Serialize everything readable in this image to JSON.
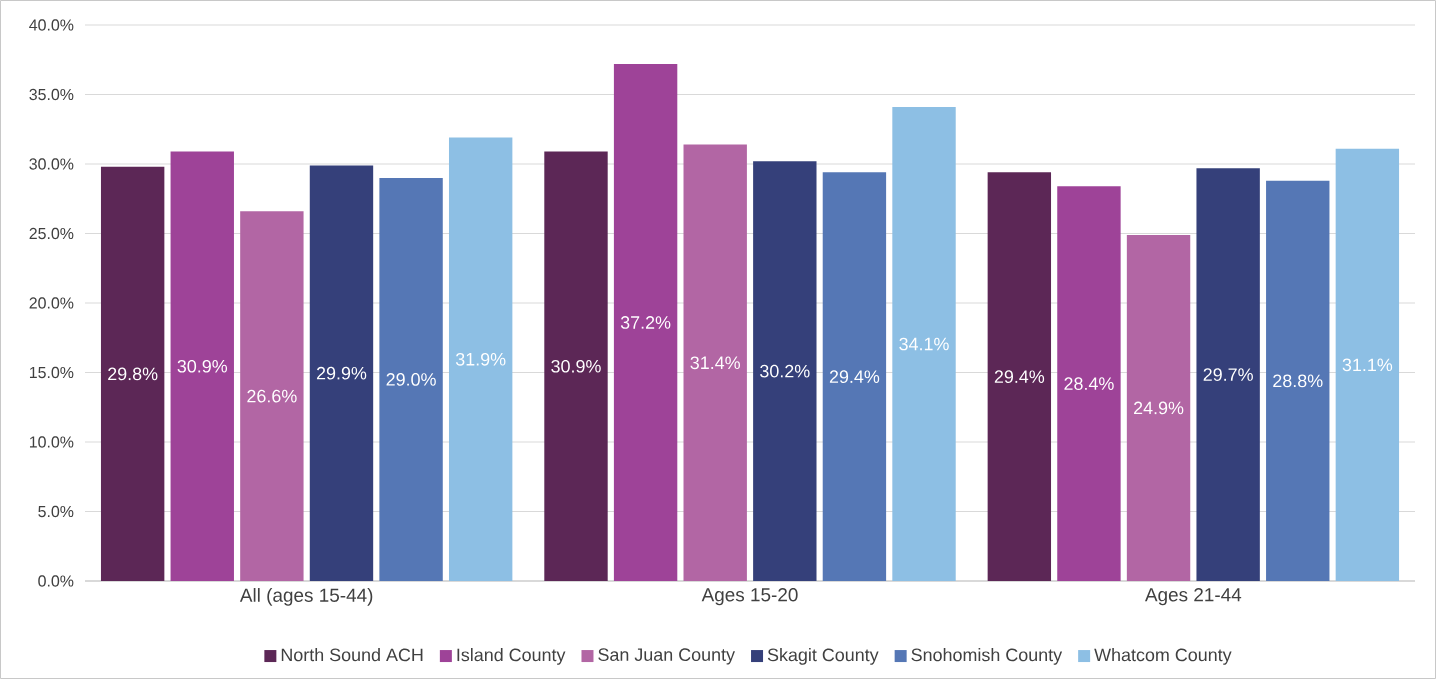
{
  "chart_data": {
    "type": "bar",
    "categories": [
      "All (ages 15-44)",
      "Ages 15-20",
      "Ages 21-44"
    ],
    "series": [
      {
        "name": "North Sound ACH",
        "color": "#5c2756",
        "values": [
          29.8,
          30.9,
          29.4
        ],
        "value_labels": [
          "29.8%",
          "30.9%",
          "29.4%"
        ]
      },
      {
        "name": "Island County",
        "color": "#9e4398",
        "values": [
          30.9,
          37.2,
          28.4
        ],
        "value_labels": [
          "30.9%",
          "37.2%",
          "28.4%"
        ]
      },
      {
        "name": "San Juan County",
        "color": "#b266a4",
        "values": [
          26.6,
          31.4,
          24.9
        ],
        "value_labels": [
          "26.6%",
          "31.4%",
          "24.9%"
        ]
      },
      {
        "name": "Skagit County",
        "color": "#35407a",
        "values": [
          29.9,
          30.2,
          29.7
        ],
        "value_labels": [
          "29.9%",
          "30.2%",
          "29.7%"
        ]
      },
      {
        "name": "Snohomish County",
        "color": "#5577b5",
        "values": [
          29.0,
          29.4,
          28.8
        ],
        "value_labels": [
          "29.0%",
          "29.4%",
          "28.8%"
        ]
      },
      {
        "name": "Whatcom County",
        "color": "#8dbfe4",
        "values": [
          31.9,
          34.1,
          31.1
        ],
        "value_labels": [
          "31.9%",
          "34.1%",
          "31.1%"
        ]
      }
    ],
    "ylim": [
      0,
      40
    ],
    "yticks": [
      {
        "value": 0,
        "label": "0.0%"
      },
      {
        "value": 5,
        "label": "5.0%"
      },
      {
        "value": 10,
        "label": "10.0%"
      },
      {
        "value": 15,
        "label": "15.0%"
      },
      {
        "value": 20,
        "label": "20.0%"
      },
      {
        "value": 25,
        "label": "25.0%"
      },
      {
        "value": 30,
        "label": "30.0%"
      },
      {
        "value": 35,
        "label": "35.0%"
      },
      {
        "value": 40,
        "label": "40.0%"
      }
    ],
    "grid": "y",
    "legend": "bottom"
  }
}
